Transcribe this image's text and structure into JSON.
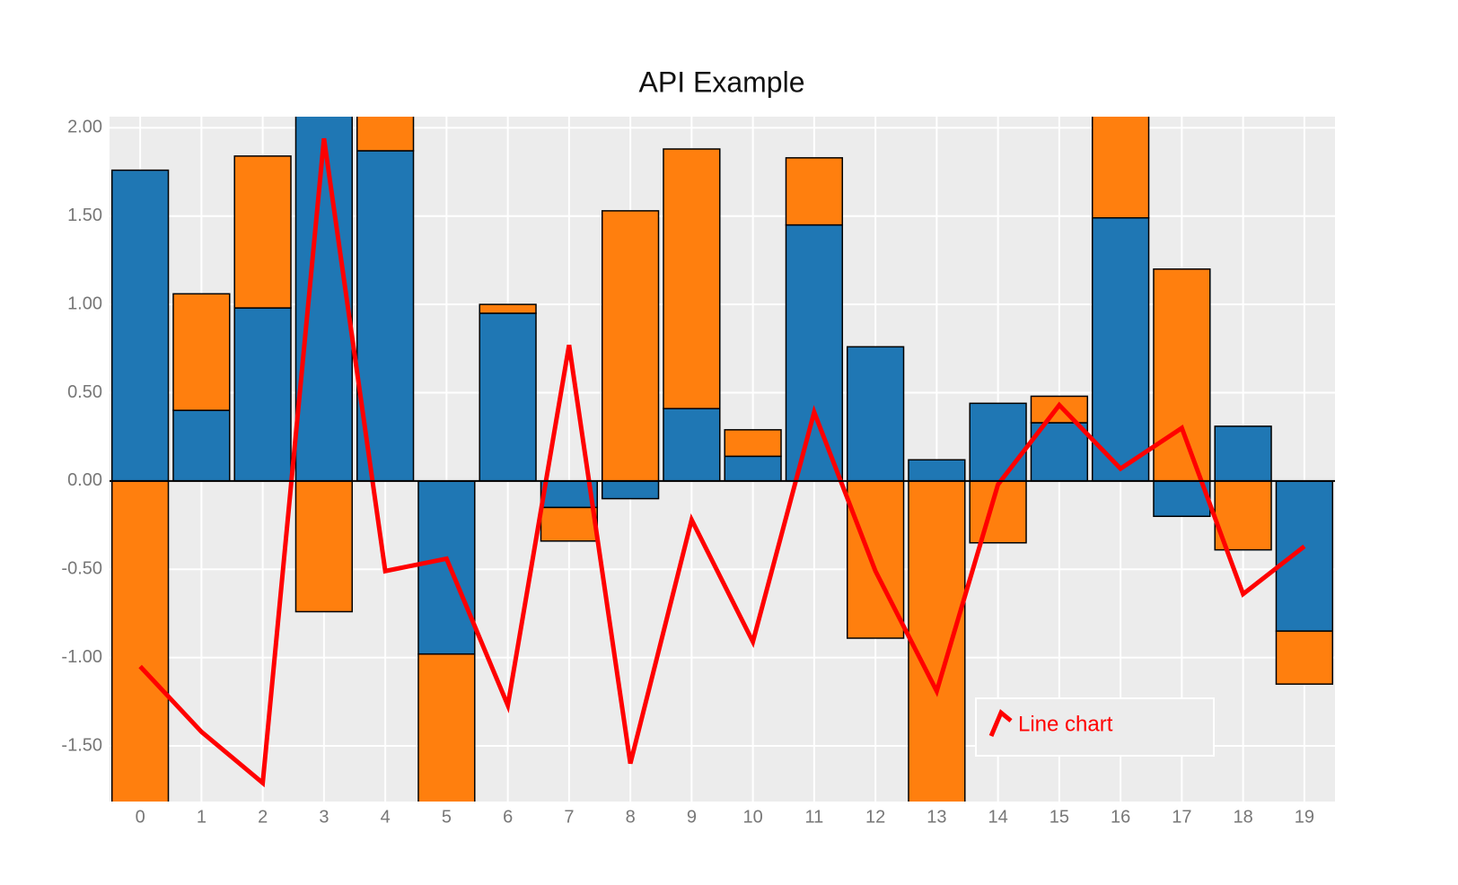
{
  "chart_data": {
    "type": "bar",
    "title": "API Example",
    "stacked": true,
    "grid": true,
    "legend": "lower right",
    "categories": [
      "0",
      "1",
      "2",
      "3",
      "4",
      "5",
      "6",
      "7",
      "8",
      "9",
      "10",
      "11",
      "12",
      "13",
      "14",
      "15",
      "16",
      "17",
      "18",
      "19"
    ],
    "ylim": [
      -1.815,
      2.063
    ],
    "yticks": [
      {
        "value": -1.5,
        "label": "-1.50"
      },
      {
        "value": -1,
        "label": "-1.00"
      },
      {
        "value": -0.5,
        "label": "-0.50"
      },
      {
        "value": 0,
        "label": "0.00"
      },
      {
        "value": 0.5,
        "label": "0.50"
      },
      {
        "value": 1,
        "label": "1.00"
      },
      {
        "value": 1.5,
        "label": "1.50"
      },
      {
        "value": 2,
        "label": "2.00"
      }
    ],
    "series": [
      {
        "type": "bar",
        "color": "#1f77b4",
        "values": [
          1.76,
          0.4,
          0.98,
          2.3,
          1.87,
          -0.98,
          0.95,
          -0.15,
          -0.1,
          0.41,
          0.14,
          1.45,
          0.76,
          0.12,
          0.44,
          0.33,
          1.49,
          -0.2,
          0.31,
          -0.85
        ]
      },
      {
        "type": "bar",
        "color": "#ff7f0e",
        "values": [
          -2.0,
          0.66,
          0.86,
          -0.74,
          0.4,
          -1.0,
          0.05,
          -0.19,
          1.53,
          1.47,
          0.15,
          0.38,
          -0.89,
          -2.0,
          -0.35,
          0.15,
          0.7,
          1.2,
          -0.39,
          -0.3
        ]
      },
      {
        "type": "line",
        "name": "Line chart",
        "color": "#ff0000",
        "values": [
          -1.05,
          -1.42,
          -1.71,
          1.94,
          -0.51,
          -0.44,
          -1.27,
          0.77,
          -1.6,
          -0.22,
          -0.91,
          0.39,
          -0.51,
          -1.19,
          -0.02,
          0.43,
          0.07,
          0.3,
          -0.64,
          -0.37
        ]
      }
    ]
  }
}
